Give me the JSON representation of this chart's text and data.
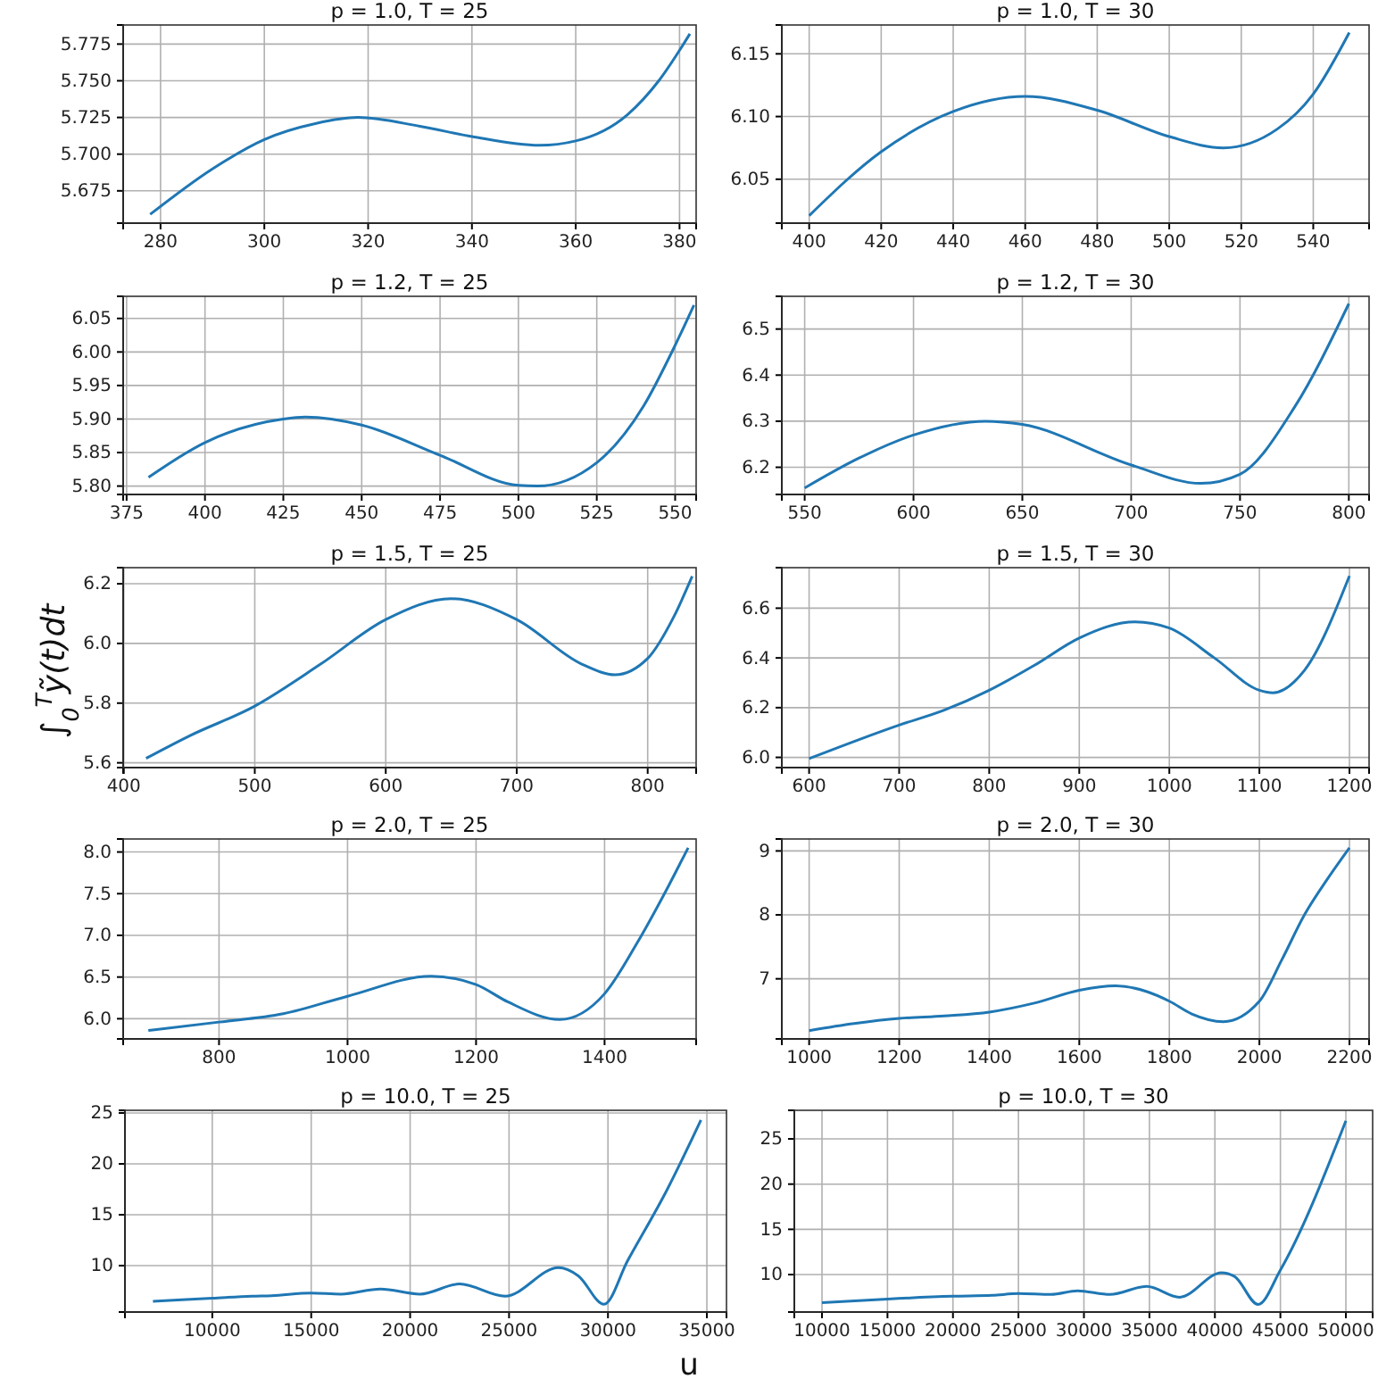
{
  "chart_data": [
    {
      "type": "line",
      "title": "p = 1.0, T = 25",
      "color": "#1f77b4",
      "grid": true,
      "xlim": [
        272.8,
        383.2
      ],
      "ylim": [
        5.653,
        5.788
      ],
      "xticks": [
        280,
        300,
        320,
        340,
        360,
        380
      ],
      "yticks": [
        {
          "value": 5.675,
          "label": "5.675"
        },
        {
          "value": 5.7,
          "label": "5.700"
        },
        {
          "value": 5.725,
          "label": "5.725"
        },
        {
          "value": 5.75,
          "label": "5.750"
        },
        {
          "value": 5.775,
          "label": "5.775"
        }
      ],
      "x": [
        278,
        290,
        300,
        310,
        318,
        330,
        340,
        353,
        360,
        370,
        376,
        382
      ],
      "values": [
        5.659,
        5.69,
        5.71,
        5.721,
        5.725,
        5.719,
        5.712,
        5.706,
        5.709,
        5.727,
        5.75,
        5.782
      ]
    },
    {
      "type": "line",
      "title": "p = 1.0, T = 30",
      "color": "#1f77b4",
      "grid": true,
      "xlim": [
        392.4,
        555.5
      ],
      "ylim": [
        6.015,
        6.173
      ],
      "xticks": [
        400,
        420,
        440,
        460,
        480,
        500,
        520,
        540
      ],
      "yticks": [
        6.05,
        {
          "value": 6.1,
          "label": "6.10"
        },
        6.15
      ],
      "x": [
        400,
        420,
        440,
        460,
        480,
        500,
        515,
        530,
        540,
        550
      ],
      "values": [
        6.021,
        6.072,
        6.104,
        6.116,
        6.105,
        6.084,
        6.075,
        6.09,
        6.118,
        6.167
      ]
    },
    {
      "type": "line",
      "title": "p = 1.2, T = 25",
      "color": "#1f77b4",
      "grid": true,
      "xlim": [
        373.9,
        556.7
      ],
      "ylim": [
        5.7875,
        6.083
      ],
      "xticks": [
        375,
        400,
        425,
        450,
        475,
        500,
        525,
        550
      ],
      "yticks": [
        {
          "value": 5.8,
          "label": "5.80"
        },
        5.85,
        {
          "value": 5.9,
          "label": "5.90"
        },
        5.95,
        {
          "value": 6,
          "label": "6.00"
        },
        6.05
      ],
      "x": [
        382,
        400,
        425,
        432,
        450,
        475,
        500,
        506,
        525,
        540,
        550,
        556
      ],
      "values": [
        5.813,
        5.865,
        5.9,
        5.903,
        5.891,
        5.846,
        5.801,
        5.8,
        5.835,
        5.92,
        6.01,
        6.07
      ]
    },
    {
      "type": "line",
      "title": "p = 1.2, T = 30",
      "color": "#1f77b4",
      "grid": true,
      "xlim": [
        539.5,
        809.3
      ],
      "ylim": [
        6.141,
        6.571
      ],
      "xticks": [
        550,
        600,
        650,
        700,
        750,
        800
      ],
      "yticks": [
        6.2,
        6.3,
        6.4,
        6.5
      ],
      "x": [
        550,
        575,
        600,
        633,
        650,
        700,
        732,
        750,
        775,
        800
      ],
      "values": [
        6.155,
        6.22,
        6.27,
        6.3,
        6.293,
        6.205,
        6.165,
        6.185,
        6.33,
        6.555
      ]
    },
    {
      "type": "line",
      "title": "p = 1.5, T = 25",
      "ylabel": "∫$_{0}$$^{T}$ỹ(t)dt",
      "color": "#1f77b4",
      "grid": true,
      "xlim": [
        399.5,
        837
      ],
      "ylim": [
        5.584,
        6.254
      ],
      "xticks": [
        400,
        500,
        600,
        700,
        800
      ],
      "yticks": [
        5.6,
        5.8,
        {
          "value": 6,
          "label": "6.0"
        },
        6.2
      ],
      "x": [
        417,
        450,
        500,
        550,
        600,
        650,
        700,
        750,
        775,
        800,
        820,
        834
      ],
      "values": [
        5.615,
        5.69,
        5.79,
        5.93,
        6.08,
        6.15,
        6.08,
        5.93,
        5.895,
        5.95,
        6.09,
        6.225
      ]
    },
    {
      "type": "line",
      "title": "p = 1.5, T = 30",
      "color": "#1f77b4",
      "grid": true,
      "xlim": [
        569.7,
        1221.8
      ],
      "ylim": [
        5.959,
        6.763
      ],
      "xticks": [
        600,
        700,
        800,
        900,
        1000,
        1100,
        1200
      ],
      "yticks": [
        {
          "value": 6,
          "label": "6.0"
        },
        6.2,
        6.4,
        6.6
      ],
      "x": [
        600,
        700,
        750,
        800,
        850,
        900,
        962,
        1000,
        1050,
        1100,
        1115,
        1150,
        1200
      ],
      "values": [
        5.995,
        6.13,
        6.19,
        6.27,
        6.37,
        6.48,
        6.545,
        6.52,
        6.4,
        6.27,
        6.26,
        6.35,
        6.73
      ]
    },
    {
      "type": "line",
      "title": "p = 2.0, T = 25",
      "color": "#1f77b4",
      "grid": true,
      "xlim": [
        650.8,
        1542.5
      ],
      "ylim": [
        5.758,
        8.156
      ],
      "xticks": [
        800,
        1000,
        1200,
        1400
      ],
      "yticks": [
        {
          "value": 6,
          "label": "6.0"
        },
        6.5,
        {
          "value": 7,
          "label": "7.0"
        },
        7.5,
        {
          "value": 8,
          "label": "8.0"
        }
      ],
      "x": [
        690,
        800,
        900,
        1000,
        1130,
        1200,
        1250,
        1330,
        1400,
        1450,
        1500,
        1530
      ],
      "values": [
        5.86,
        5.96,
        6.06,
        6.27,
        6.51,
        6.41,
        6.2,
        5.99,
        6.3,
        6.9,
        7.6,
        8.05
      ]
    },
    {
      "type": "line",
      "title": "p = 2.0, T = 30",
      "color": "#1f77b4",
      "grid": true,
      "xlim": [
        939.3,
        2243.6
      ],
      "ylim": [
        6.06,
        9.187
      ],
      "xticks": [
        1000,
        1200,
        1400,
        1600,
        1800,
        2000,
        2200
      ],
      "yticks": [
        7,
        8,
        9
      ],
      "x": [
        1000,
        1100,
        1200,
        1300,
        1400,
        1500,
        1600,
        1680,
        1750,
        1800,
        1850,
        1920,
        2000,
        2050,
        2100,
        2150,
        2200
      ],
      "values": [
        6.19,
        6.3,
        6.38,
        6.42,
        6.48,
        6.62,
        6.82,
        6.89,
        6.8,
        6.65,
        6.45,
        6.33,
        6.65,
        7.3,
        8.0,
        8.55,
        9.05
      ]
    },
    {
      "type": "line",
      "title": "p = 10.0, T = 25",
      "xlabel": "u",
      "color": "#1f77b4",
      "grid": true,
      "xlim": [
        5585,
        35991
      ],
      "ylim": [
        5.44,
        25.26
      ],
      "xticks": [
        10000,
        15000,
        20000,
        25000,
        30000,
        35000
      ],
      "yticks": [
        10,
        15,
        20,
        25
      ],
      "x": [
        7000,
        10000,
        12000,
        13000,
        15000,
        16500,
        18500,
        20500,
        22500,
        24800,
        27500,
        28500,
        29800,
        31000,
        33000,
        34700
      ],
      "values": [
        6.5,
        6.8,
        7.0,
        7.05,
        7.3,
        7.2,
        7.7,
        7.2,
        8.2,
        7.0,
        9.8,
        9.0,
        6.2,
        10.5,
        17.5,
        24.3
      ]
    },
    {
      "type": "line",
      "title": "p = 10.0, T = 30",
      "color": "#1f77b4",
      "grid": true,
      "xlim": [
        7887,
        52044
      ],
      "ylim": [
        5.86,
        28.16
      ],
      "xticks": [
        10000,
        15000,
        20000,
        25000,
        30000,
        35000,
        40000,
        45000,
        50000
      ],
      "yticks": [
        10,
        15,
        20,
        25
      ],
      "x": [
        10000,
        15000,
        20000,
        23000,
        25000,
        27500,
        29500,
        32000,
        34800,
        37300,
        40500,
        41500,
        43300,
        45000,
        50000
      ],
      "values": [
        6.9,
        7.3,
        7.6,
        7.7,
        7.9,
        7.8,
        8.2,
        7.8,
        8.7,
        7.5,
        10.2,
        9.8,
        6.7,
        10.5,
        27.0
      ]
    }
  ]
}
